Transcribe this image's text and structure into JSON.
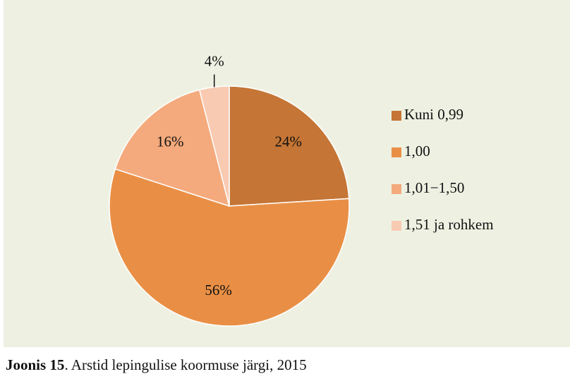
{
  "chart_data": {
    "type": "pie",
    "categories": [
      "Kuni 0,99",
      "1,00",
      "1,01−1,50",
      "1,51 ja rohkem"
    ],
    "values": [
      24,
      56,
      16,
      4
    ],
    "value_labels": [
      "24%",
      "56%",
      "16%",
      "4%"
    ],
    "colors": [
      "#c57535",
      "#e98f45",
      "#f4aa7c",
      "#f8cab2"
    ],
    "legend": "right"
  },
  "caption": {
    "label": "Joonis 15",
    "text": ". Arstid lepingulise koormuse järgi, 2015"
  }
}
